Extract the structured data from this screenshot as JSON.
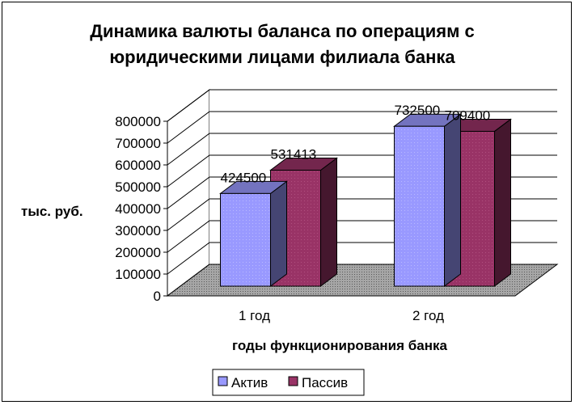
{
  "chart_data": {
    "type": "bar",
    "title_lines": [
      "Динамика валюты баланса по операциям с",
      "юридическими лицами филиала банка"
    ],
    "xlabel": "годы функционирования банка",
    "ylabel": "тыс. руб.",
    "categories": [
      "1 год",
      "2 год"
    ],
    "series": [
      {
        "name": "Актив",
        "values": [
          424500,
          732500
        ],
        "color": "#9999ff"
      },
      {
        "name": "Пассив",
        "values": [
          531413,
          709400
        ],
        "color": "#993366"
      }
    ],
    "ylim": [
      0,
      800000
    ],
    "yticks": [
      "0",
      "100000",
      "200000",
      "300000",
      "400000",
      "500000",
      "600000",
      "700000",
      "800000"
    ],
    "grid": true,
    "three_d": true,
    "legend": "bottom",
    "floor_color": "#808080"
  }
}
